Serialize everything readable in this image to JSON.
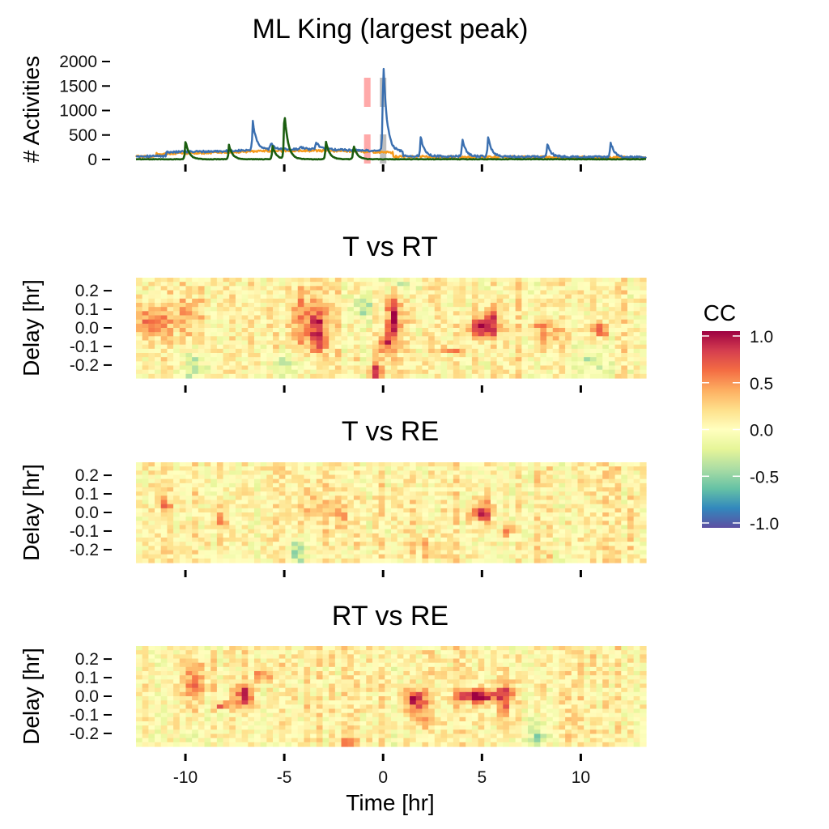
{
  "chart_data": [
    {
      "type": "line",
      "title": "ML King (largest peak)",
      "xlabel": "",
      "ylabel": "# Activities",
      "ylim": [
        0,
        2000
      ],
      "yticks": [
        0,
        500,
        1000,
        1500,
        2000
      ],
      "xlim": [
        -12.5,
        13.3
      ],
      "xticks": [
        -10,
        -5,
        0,
        5,
        10
      ],
      "show_x_tick_labels": false,
      "series": [
        {
          "color": "#3a6fb0",
          "baseline": 60,
          "peaks": [
            {
              "x": -6.6,
              "y": 820
            },
            {
              "x": -5.7,
              "y": 350
            },
            {
              "x": -4.2,
              "y": 260
            },
            {
              "x": -3.4,
              "y": 370
            },
            {
              "x": 0.0,
              "y": 2100
            },
            {
              "x": 1.9,
              "y": 470
            },
            {
              "x": 4.0,
              "y": 450
            },
            {
              "x": 5.3,
              "y": 490
            },
            {
              "x": 8.3,
              "y": 330
            },
            {
              "x": 11.5,
              "y": 380
            }
          ]
        },
        {
          "color": "#f59a1b",
          "baseline": 150,
          "peaks": []
        },
        {
          "color": "#1a5d0f",
          "baseline": 5,
          "peaks": [
            {
              "x": -10.0,
              "y": 390
            },
            {
              "x": -7.8,
              "y": 300
            },
            {
              "x": -5.6,
              "y": 290
            },
            {
              "x": -5.0,
              "y": 1000
            },
            {
              "x": -2.9,
              "y": 390
            },
            {
              "x": -1.5,
              "y": 300
            }
          ]
        }
      ],
      "markers": [
        {
          "x": -0.8,
          "color": "#ff9a9a",
          "opacity": 0.85
        },
        {
          "x": 0.0,
          "color": "#b3b3b3",
          "opacity": 0.85
        }
      ]
    },
    {
      "type": "heatmap",
      "title": "T vs RT",
      "ylabel": "Delay [hr]",
      "xlim": [
        -12.5,
        13.3
      ],
      "ylim": [
        -0.27,
        0.27
      ],
      "yticks": [
        0.2,
        0.1,
        0.0,
        -0.1,
        -0.2
      ],
      "ytick_labels": [
        "0.2",
        "0.1",
        "0.0",
        "-0.1",
        "-0.2"
      ],
      "xticks": [
        -10,
        -5,
        0,
        5,
        10
      ],
      "show_x_tick_labels": false,
      "cols": 82,
      "rows": 24,
      "seed": 11,
      "blobs": [
        {
          "x": -11.8,
          "y": 0.03,
          "v": 0.5,
          "wx": 0.7,
          "wy": 0.07
        },
        {
          "x": -9.8,
          "y": 0.05,
          "v": 0.35,
          "wx": 0.4,
          "wy": 0.1
        },
        {
          "x": -4.0,
          "y": 0.05,
          "v": 0.45,
          "wx": 0.6,
          "wy": 0.12
        },
        {
          "x": -3.3,
          "y": -0.02,
          "v": 0.55,
          "wx": 0.3,
          "wy": 0.08
        },
        {
          "x": 0.5,
          "y": 0.05,
          "v": 0.85,
          "wx": 0.22,
          "wy": 0.1
        },
        {
          "x": 0.1,
          "y": -0.08,
          "v": 0.7,
          "wx": 0.2,
          "wy": 0.05
        },
        {
          "x": -0.3,
          "y": -0.23,
          "v": 0.9,
          "wx": 0.2,
          "wy": 0.03
        },
        {
          "x": 5.0,
          "y": 0.0,
          "v": 0.85,
          "wx": 0.55,
          "wy": 0.04
        },
        {
          "x": 5.5,
          "y": 0.06,
          "v": 0.45,
          "wx": 0.25,
          "wy": 0.06
        },
        {
          "x": 7.9,
          "y": 0.0,
          "v": 0.4,
          "wx": 0.3,
          "wy": 0.05
        },
        {
          "x": 8.7,
          "y": -0.05,
          "v": 0.35,
          "wx": 0.3,
          "wy": 0.04
        },
        {
          "x": 11.0,
          "y": -0.01,
          "v": 0.75,
          "wx": 0.3,
          "wy": 0.025
        },
        {
          "x": 3.3,
          "y": -0.12,
          "v": 0.6,
          "wx": 0.5,
          "wy": 0.01
        },
        {
          "x": -1.0,
          "y": 0.12,
          "v": -0.4,
          "wx": 0.4,
          "wy": 0.05
        },
        {
          "x": 0.9,
          "y": 0.22,
          "v": -0.35,
          "wx": 0.5,
          "wy": 0.05
        },
        {
          "x": -9.5,
          "y": -0.2,
          "v": -0.35,
          "wx": 0.5,
          "wy": 0.06
        },
        {
          "x": -5.0,
          "y": -0.22,
          "v": -0.3,
          "wx": 0.6,
          "wy": 0.05
        },
        {
          "x": 10.5,
          "y": -0.18,
          "v": -0.3,
          "wx": 0.6,
          "wy": 0.06
        }
      ]
    },
    {
      "type": "heatmap",
      "title": "T vs RE",
      "ylabel": "Delay [hr]",
      "xlim": [
        -12.5,
        13.3
      ],
      "ylim": [
        -0.27,
        0.27
      ],
      "yticks": [
        0.2,
        0.1,
        0.0,
        -0.1,
        -0.2
      ],
      "ytick_labels": [
        "0.2",
        "0.1",
        "0.0",
        "-0.1",
        "-0.2"
      ],
      "xticks": [
        -10,
        -5,
        0,
        5,
        10
      ],
      "show_x_tick_labels": false,
      "cols": 82,
      "rows": 24,
      "seed": 23,
      "blobs": [
        {
          "x": 5.0,
          "y": 0.0,
          "v": 0.8,
          "wx": 0.35,
          "wy": 0.04
        },
        {
          "x": 6.3,
          "y": -0.1,
          "v": 0.6,
          "wx": 0.2,
          "wy": 0.02
        },
        {
          "x": -4.3,
          "y": -0.22,
          "v": -0.5,
          "wx": 0.3,
          "wy": 0.06
        },
        {
          "x": -3.6,
          "y": 0.02,
          "v": 0.3,
          "wx": 0.4,
          "wy": 0.1
        },
        {
          "x": -2.1,
          "y": -0.02,
          "v": 0.35,
          "wx": 0.3,
          "wy": 0.06
        },
        {
          "x": 2.2,
          "y": -0.2,
          "v": 0.4,
          "wx": 0.3,
          "wy": 0.04
        },
        {
          "x": -11.0,
          "y": 0.04,
          "v": 0.4,
          "wx": 0.2,
          "wy": 0.03
        },
        {
          "x": -8.2,
          "y": -0.04,
          "v": 0.3,
          "wx": 0.3,
          "wy": 0.03
        }
      ]
    },
    {
      "type": "heatmap",
      "title": "RT vs RE",
      "ylabel": "Delay [hr]",
      "xlabel": "Time [hr]",
      "xlim": [
        -12.5,
        13.3
      ],
      "ylim": [
        -0.27,
        0.27
      ],
      "yticks": [
        0.2,
        0.1,
        0.0,
        -0.1,
        -0.2
      ],
      "ytick_labels": [
        "0.2",
        "0.1",
        "0.0",
        "-0.1",
        "-0.2"
      ],
      "xticks": [
        -10,
        -5,
        0,
        5,
        10
      ],
      "xtick_labels": [
        "-10",
        "-5",
        "0",
        "5",
        "10"
      ],
      "show_x_tick_labels": true,
      "cols": 82,
      "rows": 24,
      "seed": 37,
      "blobs": [
        {
          "x": -7.0,
          "y": 0.0,
          "v": 0.85,
          "wx": 0.3,
          "wy": 0.04
        },
        {
          "x": -6.0,
          "y": 0.12,
          "v": 0.6,
          "wx": 0.3,
          "wy": 0.03
        },
        {
          "x": -9.6,
          "y": 0.08,
          "v": 0.4,
          "wx": 0.5,
          "wy": 0.08
        },
        {
          "x": -8.1,
          "y": -0.05,
          "v": 0.7,
          "wx": 0.25,
          "wy": 0.015
        },
        {
          "x": 1.6,
          "y": -0.01,
          "v": 0.85,
          "wx": 0.35,
          "wy": 0.035
        },
        {
          "x": 1.9,
          "y": -0.08,
          "v": 0.4,
          "wx": 0.4,
          "wy": 0.05
        },
        {
          "x": 4.8,
          "y": 0.0,
          "v": 1.0,
          "wx": 0.75,
          "wy": 0.025
        },
        {
          "x": 6.2,
          "y": 0.0,
          "v": 0.6,
          "wx": 0.3,
          "wy": 0.08
        },
        {
          "x": -1.8,
          "y": -0.25,
          "v": 0.7,
          "wx": 0.3,
          "wy": 0.01
        },
        {
          "x": 7.8,
          "y": -0.2,
          "v": -0.5,
          "wx": 0.3,
          "wy": 0.05
        },
        {
          "x": -9.6,
          "y": -0.22,
          "v": -0.35,
          "wx": 0.3,
          "wy": 0.04
        }
      ]
    }
  ],
  "colorbar": {
    "title": "CC",
    "range": [
      -1.0,
      1.0
    ],
    "ticks": [
      1.0,
      0.5,
      0.0,
      -0.5,
      -1.0
    ],
    "tick_labels": [
      "1.0",
      "0.5",
      "0.0",
      "-0.5",
      "-1.0"
    ],
    "colors": [
      "#5e4fa2",
      "#3288bd",
      "#66c2a5",
      "#abdda4",
      "#e6f598",
      "#ffffbf",
      "#fee08b",
      "#fdae61",
      "#f46d43",
      "#d53e4f",
      "#9e0142"
    ]
  }
}
